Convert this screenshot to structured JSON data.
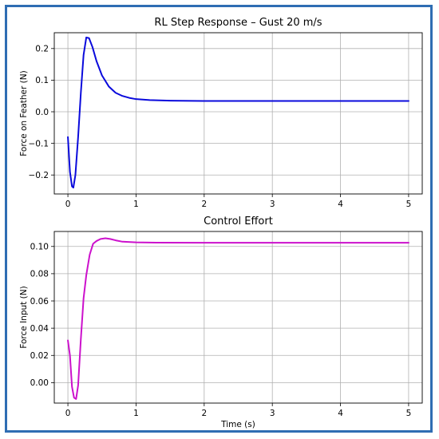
{
  "chart_data": [
    {
      "type": "line",
      "title": "RL Step Response – Gust 20 m/s",
      "xlabel": "",
      "ylabel": "Force on Feather (N)",
      "xlim": [
        -0.2,
        5.2
      ],
      "ylim": [
        -0.26,
        0.25
      ],
      "xticks": [
        0,
        1,
        2,
        3,
        4,
        5
      ],
      "yticks": [
        -0.2,
        -0.1,
        0.0,
        0.1,
        0.2
      ],
      "xtick_labels": [
        "0",
        "1",
        "2",
        "3",
        "4",
        "5"
      ],
      "ytick_labels": [
        "−0.2",
        "−0.1",
        "0.0",
        "0.1",
        "0.2"
      ],
      "grid": true,
      "series": [
        {
          "color": "#0a0adc",
          "x": [
            0.0,
            0.03,
            0.06,
            0.08,
            0.11,
            0.15,
            0.19,
            0.23,
            0.27,
            0.31,
            0.36,
            0.42,
            0.5,
            0.6,
            0.7,
            0.8,
            0.9,
            1.0,
            1.2,
            1.5,
            2.0,
            3.0,
            4.0,
            5.0
          ],
          "y": [
            -0.08,
            -0.19,
            -0.236,
            -0.24,
            -0.2,
            -0.08,
            0.06,
            0.18,
            0.235,
            0.233,
            0.205,
            0.16,
            0.115,
            0.08,
            0.06,
            0.05,
            0.044,
            0.04,
            0.037,
            0.035,
            0.034,
            0.034,
            0.034,
            0.034
          ]
        }
      ]
    },
    {
      "type": "line",
      "title": "Control Effort",
      "xlabel": "Time (s)",
      "ylabel": "Force Input (N)",
      "xlim": [
        -0.2,
        5.2
      ],
      "ylim": [
        -0.015,
        0.111
      ],
      "xticks": [
        0,
        1,
        2,
        3,
        4,
        5
      ],
      "yticks": [
        0.0,
        0.02,
        0.04,
        0.06,
        0.08,
        0.1
      ],
      "xtick_labels": [
        "0",
        "1",
        "2",
        "3",
        "4",
        "5"
      ],
      "ytick_labels": [
        "0.00",
        "0.02",
        "0.04",
        "0.06",
        "0.08",
        "0.10"
      ],
      "grid": true,
      "series": [
        {
          "color": "#cc11cc",
          "x": [
            0.0,
            0.03,
            0.06,
            0.09,
            0.12,
            0.15,
            0.19,
            0.23,
            0.27,
            0.32,
            0.37,
            0.42,
            0.48,
            0.55,
            0.62,
            0.7,
            0.8,
            1.0,
            1.3,
            2.0,
            3.0,
            4.0,
            5.0
          ],
          "y": [
            0.031,
            0.02,
            -0.003,
            -0.011,
            -0.012,
            -0.002,
            0.032,
            0.062,
            0.079,
            0.094,
            0.102,
            0.104,
            0.1055,
            0.106,
            0.1055,
            0.1045,
            0.1035,
            0.103,
            0.1028,
            0.1027,
            0.1027,
            0.1027,
            0.1027
          ]
        }
      ]
    }
  ]
}
